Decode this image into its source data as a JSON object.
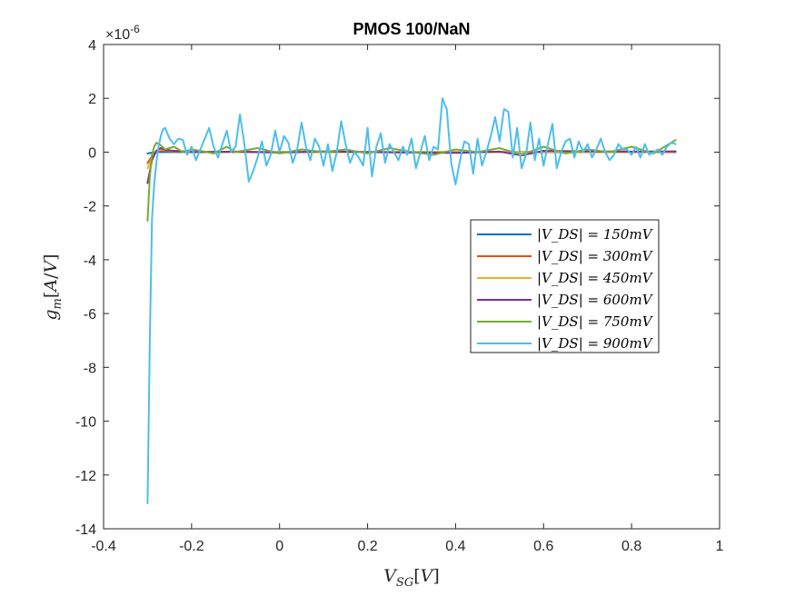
{
  "chart_data": {
    "type": "line",
    "title": "PMOS 100/NaN",
    "xlabel": "V_SG[V]",
    "ylabel": "g_m[A/V]",
    "y_exponent_label": "×10-6",
    "xlim": [
      -0.4,
      1.0
    ],
    "ylim": [
      -14,
      4
    ],
    "xticks": [
      -0.4,
      -0.2,
      0,
      0.2,
      0.4,
      0.6,
      0.8,
      1.0
    ],
    "xtick_labels": [
      "-0.4",
      "-0.2",
      "0",
      "0.2",
      "0.4",
      "0.6",
      "0.8",
      "1"
    ],
    "yticks": [
      -14,
      -12,
      -10,
      -8,
      -6,
      -4,
      -2,
      0,
      2,
      4
    ],
    "ytick_labels": [
      "-14",
      "-12",
      "-10",
      "-8",
      "-6",
      "-4",
      "-2",
      "0",
      "2",
      "4"
    ],
    "grid": false,
    "legend_position": "right-middle",
    "series": [
      {
        "name": "|V_DS| = 150mV",
        "color": "#0072BD",
        "x": [
          -0.3,
          -0.28,
          -0.25,
          -0.2,
          0,
          0.2,
          0.4,
          0.6,
          0.8,
          0.9
        ],
        "y": [
          -0.05,
          0.0,
          0.0,
          0.0,
          0.0,
          0.0,
          0.0,
          0.0,
          0.0,
          0.0
        ]
      },
      {
        "name": "|V_DS| = 300mV",
        "color": "#D95319",
        "x": [
          -0.3,
          -0.29,
          -0.28,
          -0.27,
          -0.25,
          -0.2,
          0,
          0.2,
          0.4,
          0.6,
          0.8,
          0.9
        ],
        "y": [
          -0.4,
          -0.15,
          0.0,
          0.05,
          0.03,
          0.0,
          0.0,
          0.0,
          0.0,
          0.0,
          0.0,
          0.0
        ]
      },
      {
        "name": "|V_DS| = 450mV",
        "color": "#EDB120",
        "x": [
          -0.3,
          -0.29,
          -0.28,
          -0.27,
          -0.25,
          -0.2,
          -0.1,
          0,
          0.1,
          0.2,
          0.3,
          0.4,
          0.5,
          0.6,
          0.7,
          0.8,
          0.9
        ],
        "y": [
          -0.6,
          -0.2,
          0.05,
          0.1,
          0.05,
          0.02,
          0.0,
          0.01,
          0.0,
          0.0,
          0.01,
          0.0,
          0.0,
          0.02,
          0.0,
          0.0,
          0.02
        ]
      },
      {
        "name": "|V_DS| = 600mV",
        "color": "#7E2F8E",
        "x": [
          -0.3,
          -0.29,
          -0.28,
          -0.27,
          -0.26,
          -0.24,
          -0.2,
          -0.1,
          0,
          0.1,
          0.2,
          0.3,
          0.4,
          0.5,
          0.55,
          0.6,
          0.7,
          0.8,
          0.9
        ],
        "y": [
          -1.15,
          -0.3,
          0.05,
          0.15,
          0.08,
          0.05,
          0.0,
          0.02,
          -0.02,
          0.03,
          0.0,
          -0.02,
          -0.03,
          0.02,
          -0.12,
          0.05,
          0.03,
          0.02,
          0.03
        ]
      },
      {
        "name": "|V_DS| = 750mV",
        "color": "#77AC30",
        "x": [
          -0.3,
          -0.295,
          -0.29,
          -0.285,
          -0.28,
          -0.27,
          -0.26,
          -0.24,
          -0.22,
          -0.2,
          -0.18,
          -0.15,
          -0.12,
          -0.1,
          -0.05,
          0,
          0.05,
          0.1,
          0.15,
          0.2,
          0.25,
          0.3,
          0.35,
          0.4,
          0.45,
          0.5,
          0.55,
          0.6,
          0.65,
          0.7,
          0.75,
          0.8,
          0.85,
          0.9
        ],
        "y": [
          -2.55,
          -0.9,
          -0.1,
          0.2,
          0.35,
          0.25,
          0.1,
          0.2,
          0.0,
          0.1,
          0.05,
          -0.05,
          0.2,
          0.0,
          0.15,
          -0.05,
          0.1,
          0.0,
          0.1,
          -0.05,
          0.15,
          0.0,
          -0.1,
          0.1,
          0.0,
          0.15,
          -0.1,
          0.2,
          -0.05,
          0.1,
          0.0,
          0.2,
          -0.05,
          0.45
        ]
      },
      {
        "name": "|V_DS| = 900mV",
        "color": "#4DBEEE",
        "x": [
          -0.3,
          -0.295,
          -0.29,
          -0.285,
          -0.28,
          -0.275,
          -0.27,
          -0.265,
          -0.26,
          -0.25,
          -0.24,
          -0.23,
          -0.22,
          -0.21,
          -0.2,
          -0.19,
          -0.18,
          -0.17,
          -0.16,
          -0.15,
          -0.14,
          -0.13,
          -0.12,
          -0.11,
          -0.1,
          -0.09,
          -0.08,
          -0.07,
          -0.06,
          -0.05,
          -0.04,
          -0.03,
          -0.02,
          -0.01,
          0.0,
          0.01,
          0.02,
          0.03,
          0.04,
          0.05,
          0.06,
          0.07,
          0.08,
          0.09,
          0.1,
          0.11,
          0.12,
          0.13,
          0.14,
          0.15,
          0.16,
          0.17,
          0.18,
          0.19,
          0.2,
          0.21,
          0.22,
          0.23,
          0.24,
          0.25,
          0.26,
          0.27,
          0.28,
          0.29,
          0.3,
          0.31,
          0.32,
          0.33,
          0.34,
          0.35,
          0.36,
          0.37,
          0.38,
          0.39,
          0.4,
          0.41,
          0.42,
          0.43,
          0.44,
          0.45,
          0.46,
          0.47,
          0.48,
          0.49,
          0.5,
          0.51,
          0.52,
          0.53,
          0.54,
          0.55,
          0.56,
          0.57,
          0.58,
          0.59,
          0.6,
          0.61,
          0.62,
          0.63,
          0.64,
          0.65,
          0.66,
          0.67,
          0.68,
          0.69,
          0.7,
          0.71,
          0.72,
          0.73,
          0.74,
          0.75,
          0.76,
          0.77,
          0.78,
          0.79,
          0.8,
          0.81,
          0.82,
          0.83,
          0.84,
          0.85,
          0.86,
          0.87,
          0.88,
          0.89,
          0.9
        ],
        "y": [
          -13.05,
          -7.0,
          -2.5,
          -1.2,
          -0.4,
          0.2,
          0.6,
          0.85,
          0.9,
          0.5,
          0.3,
          0.5,
          0.45,
          -0.1,
          0.2,
          -0.3,
          0.1,
          0.5,
          0.9,
          0.2,
          -0.2,
          0.3,
          0.8,
          0.0,
          0.2,
          1.4,
          0.3,
          -1.1,
          -0.7,
          -0.2,
          0.4,
          -0.5,
          -0.1,
          0.8,
          0.0,
          0.6,
          0.35,
          -0.4,
          0.1,
          1.1,
          0.2,
          -0.3,
          0.5,
          0.2,
          -0.5,
          0.3,
          -0.7,
          0.0,
          1.15,
          0.3,
          -0.4,
          0.0,
          -0.2,
          -0.5,
          0.9,
          -0.9,
          0.2,
          0.7,
          -0.4,
          0.3,
          0.0,
          -0.3,
          0.2,
          -0.1,
          0.5,
          -0.6,
          0.0,
          0.6,
          -0.3,
          0.2,
          0.1,
          2.0,
          1.6,
          -0.4,
          -1.2,
          -0.3,
          0.4,
          0.3,
          -0.8,
          0.5,
          -0.5,
          0.0,
          0.6,
          1.3,
          0.4,
          1.6,
          1.5,
          -0.2,
          0.9,
          -0.6,
          -0.1,
          1.1,
          -0.3,
          0.5,
          -0.5,
          0.3,
          1.05,
          -0.6,
          0.0,
          0.4,
          0.5,
          -0.2,
          0.4,
          0.0,
          0.3,
          -0.2,
          0.1,
          0.5,
          0.0,
          -0.3,
          -0.1,
          0.3,
          0.1,
          0.1,
          -0.1,
          0.2,
          -0.2,
          0.3,
          -0.1,
          0.0,
          0.1,
          -0.1,
          0.2,
          0.35,
          0.3
        ]
      }
    ]
  }
}
